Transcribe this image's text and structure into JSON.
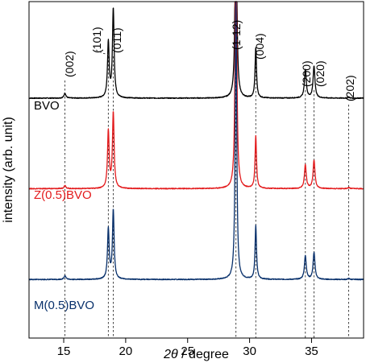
{
  "chart_data": {
    "type": "line",
    "xlabel_symbol": "2θ",
    "xlabel_unit": " / degree",
    "ylabel": "intensity (arb. unit)",
    "xlim": [
      12.2,
      39.2
    ],
    "ylim": [
      0,
      1
    ],
    "xticks": [
      15,
      20,
      25,
      30,
      35
    ],
    "grid": false,
    "peaks": [
      {
        "label": "(002)",
        "x": 15.1
      },
      {
        "label": "(101)",
        "x": 18.6
      },
      {
        "label": "(011)",
        "x": 19.0
      },
      {
        "label": "(1-12)",
        "x": 28.9
      },
      {
        "label": "(004)",
        "x": 30.5
      },
      {
        "label": "(200)",
        "x": 34.5
      },
      {
        "label": "(020)",
        "x": 35.2
      },
      {
        "label": "(202)",
        "x": 38.0
      }
    ],
    "series": [
      {
        "name": "BVO",
        "color": "#000000",
        "baseline": 0.287,
        "peak_heights": [
          0.015,
          0.165,
          0.265,
          0.75,
          0.15,
          0.085,
          0.095,
          0.003
        ]
      },
      {
        "name": "Z(0.5)BVO",
        "color": "#e31a1c",
        "baseline": 0.556,
        "peak_heights": [
          0.01,
          0.17,
          0.225,
          0.9,
          0.155,
          0.07,
          0.085,
          0.003
        ]
      },
      {
        "name": "M(0.5)BVO",
        "color": "#08306b",
        "baseline": 0.826,
        "peak_heights": [
          0.012,
          0.15,
          0.205,
          0.86,
          0.16,
          0.07,
          0.08,
          0.003
        ]
      }
    ]
  }
}
